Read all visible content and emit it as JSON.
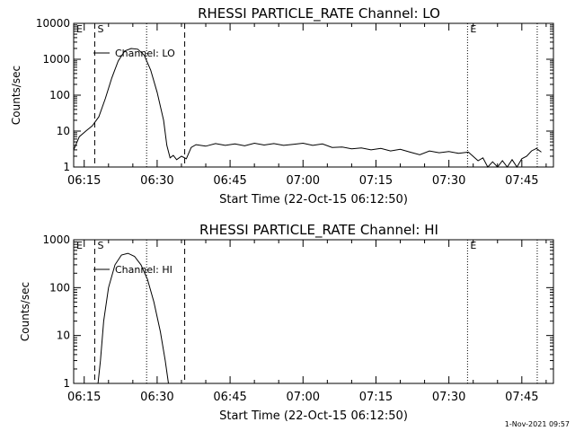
{
  "footer_timestamp": "1-Nov-2021 09:57",
  "chart_data": [
    {
      "type": "line",
      "title": "RHESSI PARTICLE_RATE Channel: LO",
      "xlabel": "Start Time (22-Oct-15 06:12:50)",
      "ylabel": "Counts/sec",
      "y_scale": "log",
      "ylim": [
        1,
        10000
      ],
      "y_ticks": [
        {
          "value": 1,
          "label": "1"
        },
        {
          "value": 10,
          "label": "10"
        },
        {
          "value": 100,
          "label": "100"
        },
        {
          "value": 1000,
          "label": "1000"
        },
        {
          "value": 10000,
          "label": "10000"
        }
      ],
      "xlim": [
        "06:12:50",
        "07:51:30"
      ],
      "x_ticks": [
        "06:15",
        "06:30",
        "06:45",
        "07:00",
        "07:15",
        "07:30",
        "07:45"
      ],
      "legend": {
        "label": "Channel: LO",
        "position": "top-left"
      },
      "markers": [
        {
          "label": "E",
          "time": "06:12:50",
          "style": "solid"
        },
        {
          "label": "S",
          "time": "06:17:10",
          "style": "dashed"
        },
        {
          "label": "",
          "time": "06:35:40",
          "style": "dashed"
        },
        {
          "label": "",
          "time": "06:27:50",
          "style": "dotted"
        },
        {
          "label": "E",
          "time": "07:33:50",
          "style": "dotted"
        },
        {
          "label": "",
          "time": "07:48:10",
          "style": "dotted"
        }
      ],
      "series": [
        {
          "name": "Channel: LO",
          "points": [
            [
              "06:12:50",
              3
            ],
            [
              "06:14:00",
              7
            ],
            [
              "06:15:20",
              10
            ],
            [
              "06:16:40",
              14
            ],
            [
              "06:18:00",
              25
            ],
            [
              "06:19:20",
              80
            ],
            [
              "06:20:40",
              300
            ],
            [
              "06:22:00",
              900
            ],
            [
              "06:23:20",
              1700
            ],
            [
              "06:24:40",
              2000
            ],
            [
              "06:26:00",
              1900
            ],
            [
              "06:27:20",
              1300
            ],
            [
              "06:28:40",
              500
            ],
            [
              "06:30:00",
              120
            ],
            [
              "06:31:20",
              20
            ],
            [
              "06:32:00",
              4
            ],
            [
              "06:32:40",
              1.8
            ],
            [
              "06:33:20",
              2.1
            ],
            [
              "06:34:00",
              1.6
            ],
            [
              "06:35:00",
              2.0
            ],
            [
              "06:36:00",
              1.7
            ],
            [
              "06:37:00",
              3.5
            ],
            [
              "06:38:00",
              4.2
            ],
            [
              "06:40:00",
              3.8
            ],
            [
              "06:42:00",
              4.5
            ],
            [
              "06:44:00",
              4.0
            ],
            [
              "06:46:00",
              4.4
            ],
            [
              "06:48:00",
              3.9
            ],
            [
              "06:50:00",
              4.6
            ],
            [
              "06:52:00",
              4.1
            ],
            [
              "06:54:00",
              4.5
            ],
            [
              "06:56:00",
              4.0
            ],
            [
              "06:58:00",
              4.3
            ],
            [
              "07:00:00",
              4.6
            ],
            [
              "07:02:00",
              4.0
            ],
            [
              "07:04:00",
              4.4
            ],
            [
              "07:06:00",
              3.5
            ],
            [
              "07:08:00",
              3.6
            ],
            [
              "07:10:00",
              3.2
            ],
            [
              "07:12:00",
              3.4
            ],
            [
              "07:14:00",
              3.0
            ],
            [
              "07:16:00",
              3.3
            ],
            [
              "07:18:00",
              2.8
            ],
            [
              "07:20:00",
              3.1
            ],
            [
              "07:22:00",
              2.6
            ],
            [
              "07:24:00",
              2.2
            ],
            [
              "07:26:00",
              2.8
            ],
            [
              "07:28:00",
              2.5
            ],
            [
              "07:30:00",
              2.7
            ],
            [
              "07:32:00",
              2.4
            ],
            [
              "07:34:00",
              2.6
            ],
            [
              "07:36:00",
              1.5
            ],
            [
              "07:37:00",
              1.8
            ],
            [
              "07:38:00",
              1.0
            ],
            [
              "07:39:00",
              1.4
            ],
            [
              "07:40:00",
              1.0
            ],
            [
              "07:41:00",
              1.5
            ],
            [
              "07:42:00",
              1.0
            ],
            [
              "07:43:00",
              1.6
            ],
            [
              "07:44:00",
              1.0
            ],
            [
              "07:45:00",
              1.7
            ],
            [
              "07:46:00",
              2.0
            ],
            [
              "07:47:00",
              2.8
            ],
            [
              "07:48:00",
              3.3
            ],
            [
              "07:49:00",
              2.6
            ]
          ]
        }
      ]
    },
    {
      "type": "line",
      "title": "RHESSI PARTICLE_RATE Channel: HI",
      "xlabel": "Start Time (22-Oct-15 06:12:50)",
      "ylabel": "Counts/sec",
      "y_scale": "log",
      "ylim": [
        1,
        1000
      ],
      "y_ticks": [
        {
          "value": 1,
          "label": "1"
        },
        {
          "value": 10,
          "label": "10"
        },
        {
          "value": 100,
          "label": "100"
        },
        {
          "value": 1000,
          "label": "1000"
        }
      ],
      "xlim": [
        "06:12:50",
        "07:51:30"
      ],
      "x_ticks": [
        "06:15",
        "06:30",
        "06:45",
        "07:00",
        "07:15",
        "07:30",
        "07:45"
      ],
      "legend": {
        "label": "Channel: HI",
        "position": "top-left"
      },
      "markers": [
        {
          "label": "E",
          "time": "06:12:50",
          "style": "solid"
        },
        {
          "label": "S",
          "time": "06:17:10",
          "style": "dashed"
        },
        {
          "label": "",
          "time": "06:35:40",
          "style": "dashed"
        },
        {
          "label": "",
          "time": "06:27:50",
          "style": "dotted"
        },
        {
          "label": "E",
          "time": "07:33:50",
          "style": "dotted"
        },
        {
          "label": "",
          "time": "07:48:10",
          "style": "dotted"
        }
      ],
      "series": [
        {
          "name": "Channel: HI",
          "points": [
            [
              "06:17:50",
              1.0
            ],
            [
              "06:18:20",
              3
            ],
            [
              "06:19:00",
              20
            ],
            [
              "06:20:00",
              100
            ],
            [
              "06:21:20",
              300
            ],
            [
              "06:22:40",
              480
            ],
            [
              "06:24:00",
              520
            ],
            [
              "06:25:20",
              450
            ],
            [
              "06:26:40",
              300
            ],
            [
              "06:28:00",
              150
            ],
            [
              "06:29:20",
              50
            ],
            [
              "06:30:40",
              12
            ],
            [
              "06:31:40",
              3
            ],
            [
              "06:32:20",
              1.0
            ]
          ]
        }
      ]
    }
  ]
}
